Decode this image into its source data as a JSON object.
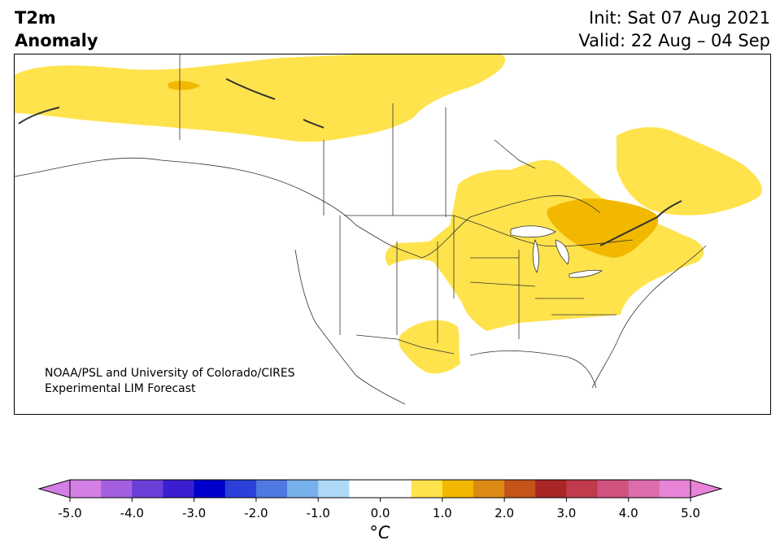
{
  "header": {
    "title_line1": "T2m",
    "title_line2": "Anomaly",
    "init": "Init: Sat 07 Aug 2021",
    "valid": "Valid: 22 Aug – 04 Sep"
  },
  "credit": {
    "line1": "NOAA/PSL and University of Colorado/CIRES",
    "line2": "Experimental LIM Forecast"
  },
  "colorbar": {
    "unit_label": "°C",
    "ticks": [
      "-5.0",
      "-4.0",
      "-3.0",
      "-2.0",
      "-1.0",
      "0.0",
      "1.0",
      "2.0",
      "3.0",
      "4.0",
      "5.0"
    ],
    "colors": [
      "#d47fe5",
      "#a35fe0",
      "#6a3fd8",
      "#3a1fd0",
      "#0000cc",
      "#2a40d8",
      "#4f78e0",
      "#78b0ec",
      "#add8f8",
      "#ffffff",
      "#ffffff",
      "#ffe34d",
      "#f2b800",
      "#dc8a14",
      "#c4541a",
      "#a82624",
      "#c03c4c",
      "#d0527e",
      "#dc6cac",
      "#e884d8"
    ],
    "under_color": "#d47fe5",
    "over_color": "#e884d8"
  },
  "map": {
    "region": "North America",
    "anomaly_fill_colors": {
      "plus_0_5_to_1": "#ffe34d",
      "plus_1_to_1_5": "#f2b800"
    }
  }
}
